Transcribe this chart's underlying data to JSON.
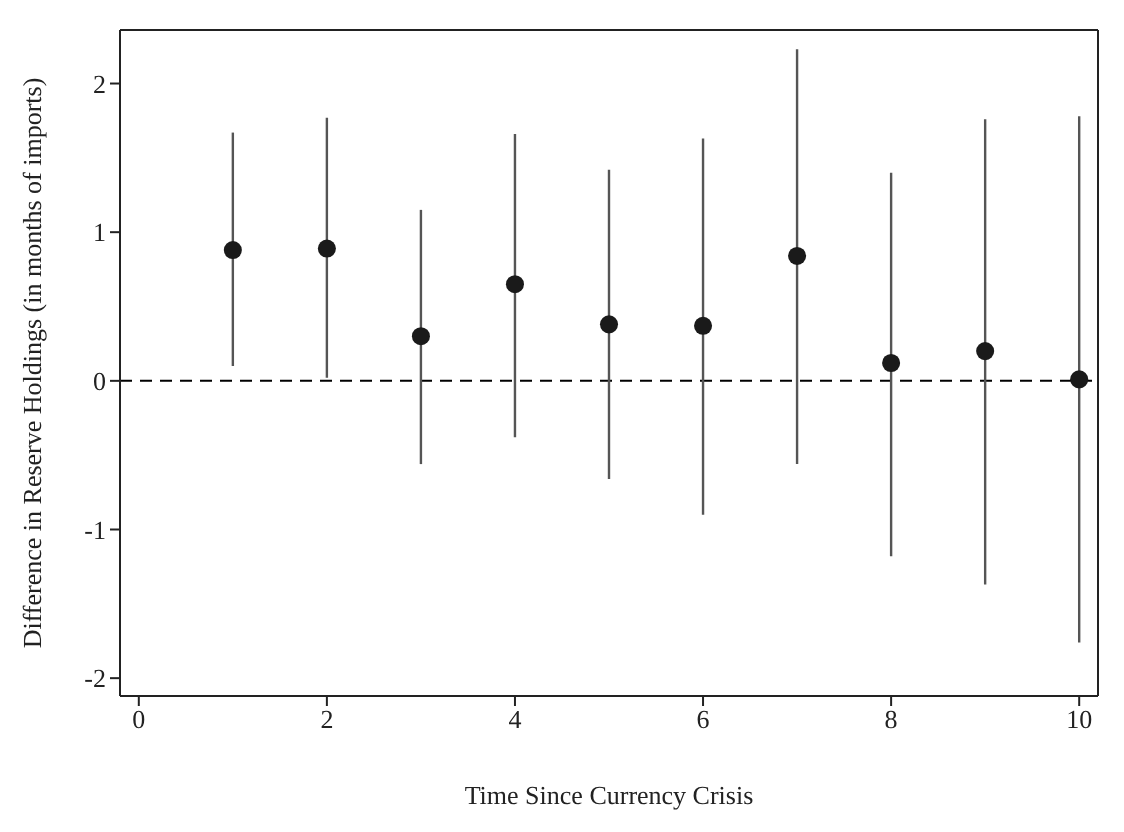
{
  "chart_data": {
    "type": "scatter",
    "xlabel": "Time Since Currency Crisis",
    "ylabel": "Difference in Reserve Holdings (in months of imports)",
    "x": [
      1,
      2,
      3,
      4,
      5,
      6,
      7,
      8,
      9,
      10
    ],
    "values": [
      0.88,
      0.89,
      0.3,
      0.65,
      0.38,
      0.37,
      0.84,
      0.12,
      0.2,
      0.01
    ],
    "errors": [
      [
        0.1,
        1.67
      ],
      [
        0.02,
        1.77
      ],
      [
        -0.56,
        1.15
      ],
      [
        -0.38,
        1.66
      ],
      [
        -0.66,
        1.42
      ],
      [
        -0.9,
        1.63
      ],
      [
        -0.56,
        2.23
      ],
      [
        -1.18,
        1.4
      ],
      [
        -1.37,
        1.76
      ],
      [
        -1.76,
        1.78
      ]
    ],
    "color": "#1a1a1a",
    "marker": "circle",
    "xlim": [
      -0.2,
      10.2
    ],
    "xticks": [
      0,
      2,
      4,
      6,
      8,
      10
    ],
    "ylim": [
      -2.12,
      2.36
    ],
    "yticks": [
      -2,
      -1,
      0,
      1,
      2
    ],
    "ref_lines": [
      {
        "axis": "y",
        "value": 0,
        "color": "#000000",
        "line_style": "dashed"
      }
    ],
    "grid": false,
    "legend": false
  }
}
